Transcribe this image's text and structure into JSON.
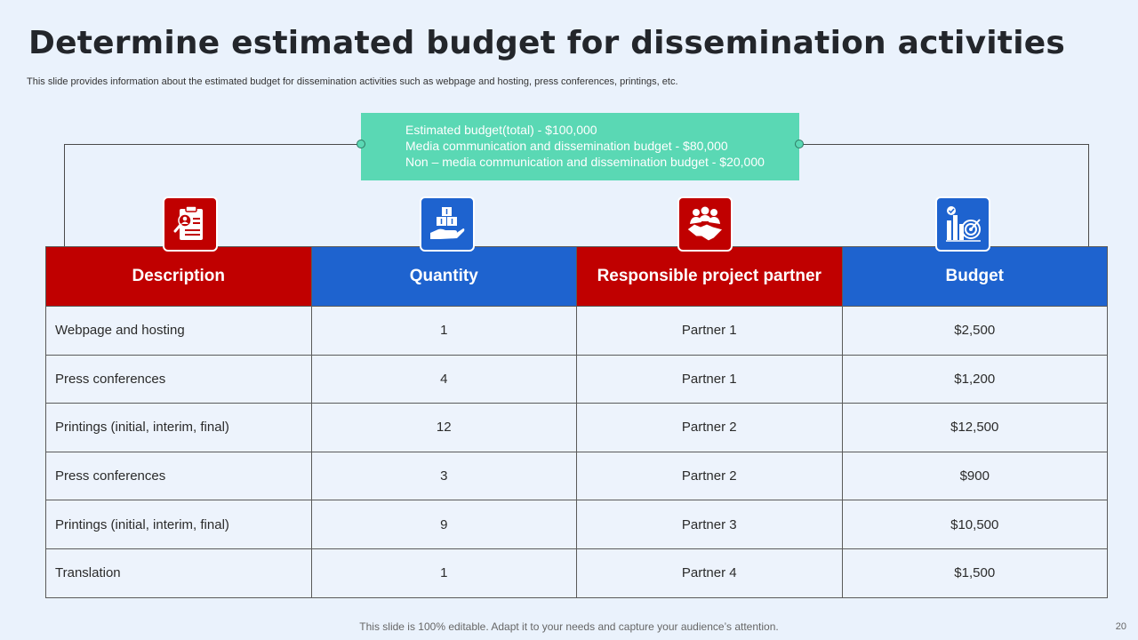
{
  "title": "Determine estimated budget for dissemination activities",
  "subtitle": "This slide provides information about the estimated budget for dissemination activities such as webpage and hosting, press conferences, printings, etc.",
  "summary": {
    "lines": [
      "Estimated budget(total) - $100,000",
      "Media communication and dissemination budget - $80,000",
      "Non – media communication and dissemination budget - $20,000"
    ]
  },
  "icons": [
    "clipboard-person-icon",
    "boxes-hand-icon",
    "handshake-icon",
    "chart-target-icon"
  ],
  "colors": {
    "red": "#c00000",
    "blue": "#1e63cf",
    "teal": "#5ad8b4",
    "background": "#eaf2fc"
  },
  "table": {
    "headers": [
      "Description",
      "Quantity",
      "Responsible project partner",
      "Budget"
    ],
    "rows": [
      [
        "Webpage and hosting",
        "1",
        "Partner 1",
        "$2,500"
      ],
      [
        "Press conferences",
        "4",
        "Partner 1",
        "$1,200"
      ],
      [
        "Printings (initial,  interim, final)",
        "12",
        "Partner 2",
        "$12,500"
      ],
      [
        "Press conferences",
        "3",
        "Partner 2",
        "$900"
      ],
      [
        "Printings (initial,  interim, final)",
        "9",
        "Partner 3",
        "$10,500"
      ],
      [
        "Translation",
        "1",
        "Partner 4",
        "$1,500"
      ]
    ]
  },
  "footer": "This slide is 100% editable. Adapt it to your needs and capture your audience’s attention.",
  "page_number": "20"
}
